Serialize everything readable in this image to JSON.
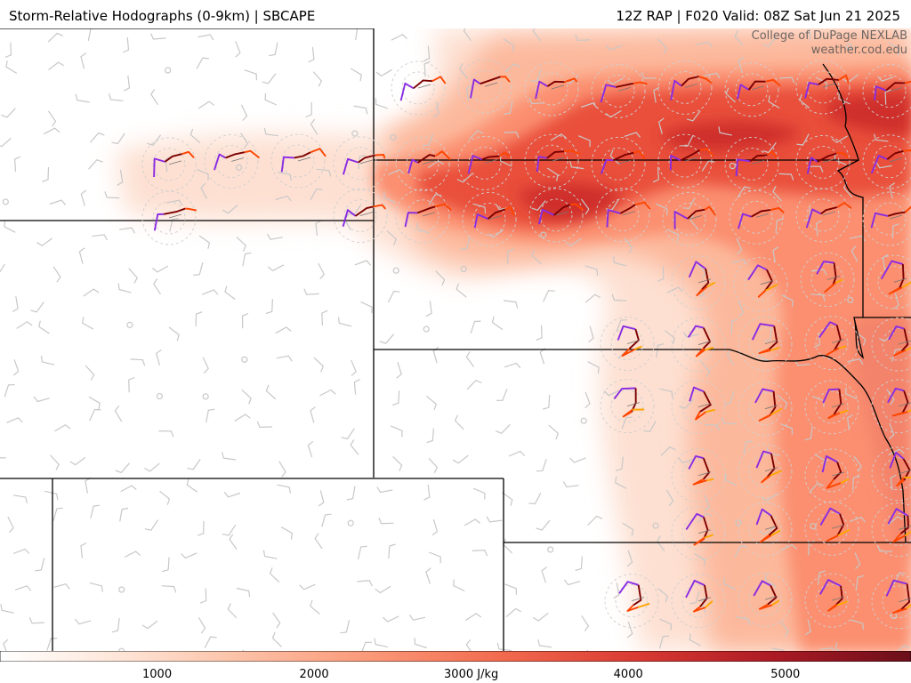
{
  "header": {
    "title": "Storm-Relative Hodographs (0-9km) | SBCAPE",
    "run_info": "12Z RAP | F020 Valid: 08Z Sat Jun 21 2025"
  },
  "credit": {
    "line1": "College of DuPage NEXLAB",
    "line2": "weather.cod.edu"
  },
  "colorbar": {
    "min": 0,
    "max": 5800,
    "ticks": [
      {
        "value": 1000,
        "label": "1000"
      },
      {
        "value": 2000,
        "label": "2000"
      },
      {
        "value": 3000,
        "label": "3000 J/kg"
      },
      {
        "value": 4000,
        "label": "4000"
      },
      {
        "value": 5000,
        "label": "5000"
      }
    ],
    "colors": [
      "#ffffff",
      "#fee5d9",
      "#fcbba1",
      "#fc9272",
      "#fb6a4a",
      "#ef3b2c",
      "#cb181d",
      "#99000d",
      "#67000d"
    ]
  },
  "hodograph_colors": {
    "low": "#8a2be2",
    "mid": "#7a0000",
    "upper": "#ff4500",
    "top": "#ffa500"
  },
  "barb_color": "#c8c8c8",
  "border_color": "#000000"
}
